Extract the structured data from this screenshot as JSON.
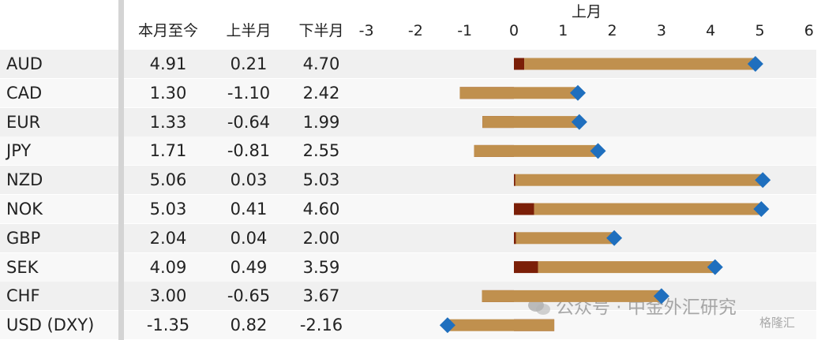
{
  "chart_data": {
    "type": "bar",
    "title": "上月",
    "columns": [
      "本月至今",
      "上半月",
      "下半月"
    ],
    "x_ticks": [
      "-3",
      "-2",
      "-1",
      "0",
      "1",
      "2",
      "3",
      "4",
      "5",
      "6"
    ],
    "xlim": [
      -3,
      6
    ],
    "rows": [
      {
        "name": "AUD",
        "mtd": "4.91",
        "first_half": "0.21",
        "second_half": "4.70"
      },
      {
        "name": "CAD",
        "mtd": "1.30",
        "first_half": "-1.10",
        "second_half": "2.42"
      },
      {
        "name": "EUR",
        "mtd": "1.33",
        "first_half": "-0.64",
        "second_half": "1.99"
      },
      {
        "name": "JPY",
        "mtd": "1.71",
        "first_half": "-0.81",
        "second_half": "2.55"
      },
      {
        "name": "NZD",
        "mtd": "5.06",
        "first_half": "0.03",
        "second_half": "5.03"
      },
      {
        "name": "NOK",
        "mtd": "5.03",
        "first_half": "0.41",
        "second_half": "4.60"
      },
      {
        "name": "GBP",
        "mtd": "2.04",
        "first_half": "0.04",
        "second_half": "2.00"
      },
      {
        "name": "SEK",
        "mtd": "4.09",
        "first_half": "0.49",
        "second_half": "3.59"
      },
      {
        "name": "CHF",
        "mtd": "3.00",
        "first_half": "-0.65",
        "second_half": "3.67"
      },
      {
        "name": "USD (DXY)",
        "mtd": "-1.35",
        "first_half": "0.82",
        "second_half": "-2.16"
      }
    ],
    "colors": {
      "first_half": "#7b1f08",
      "second_half": "#c0904e",
      "mtd_marker": "#1f6fbe"
    },
    "grid": false
  },
  "watermark": {
    "text": "公众号 · 中金外汇研究",
    "corner": "格隆汇"
  }
}
